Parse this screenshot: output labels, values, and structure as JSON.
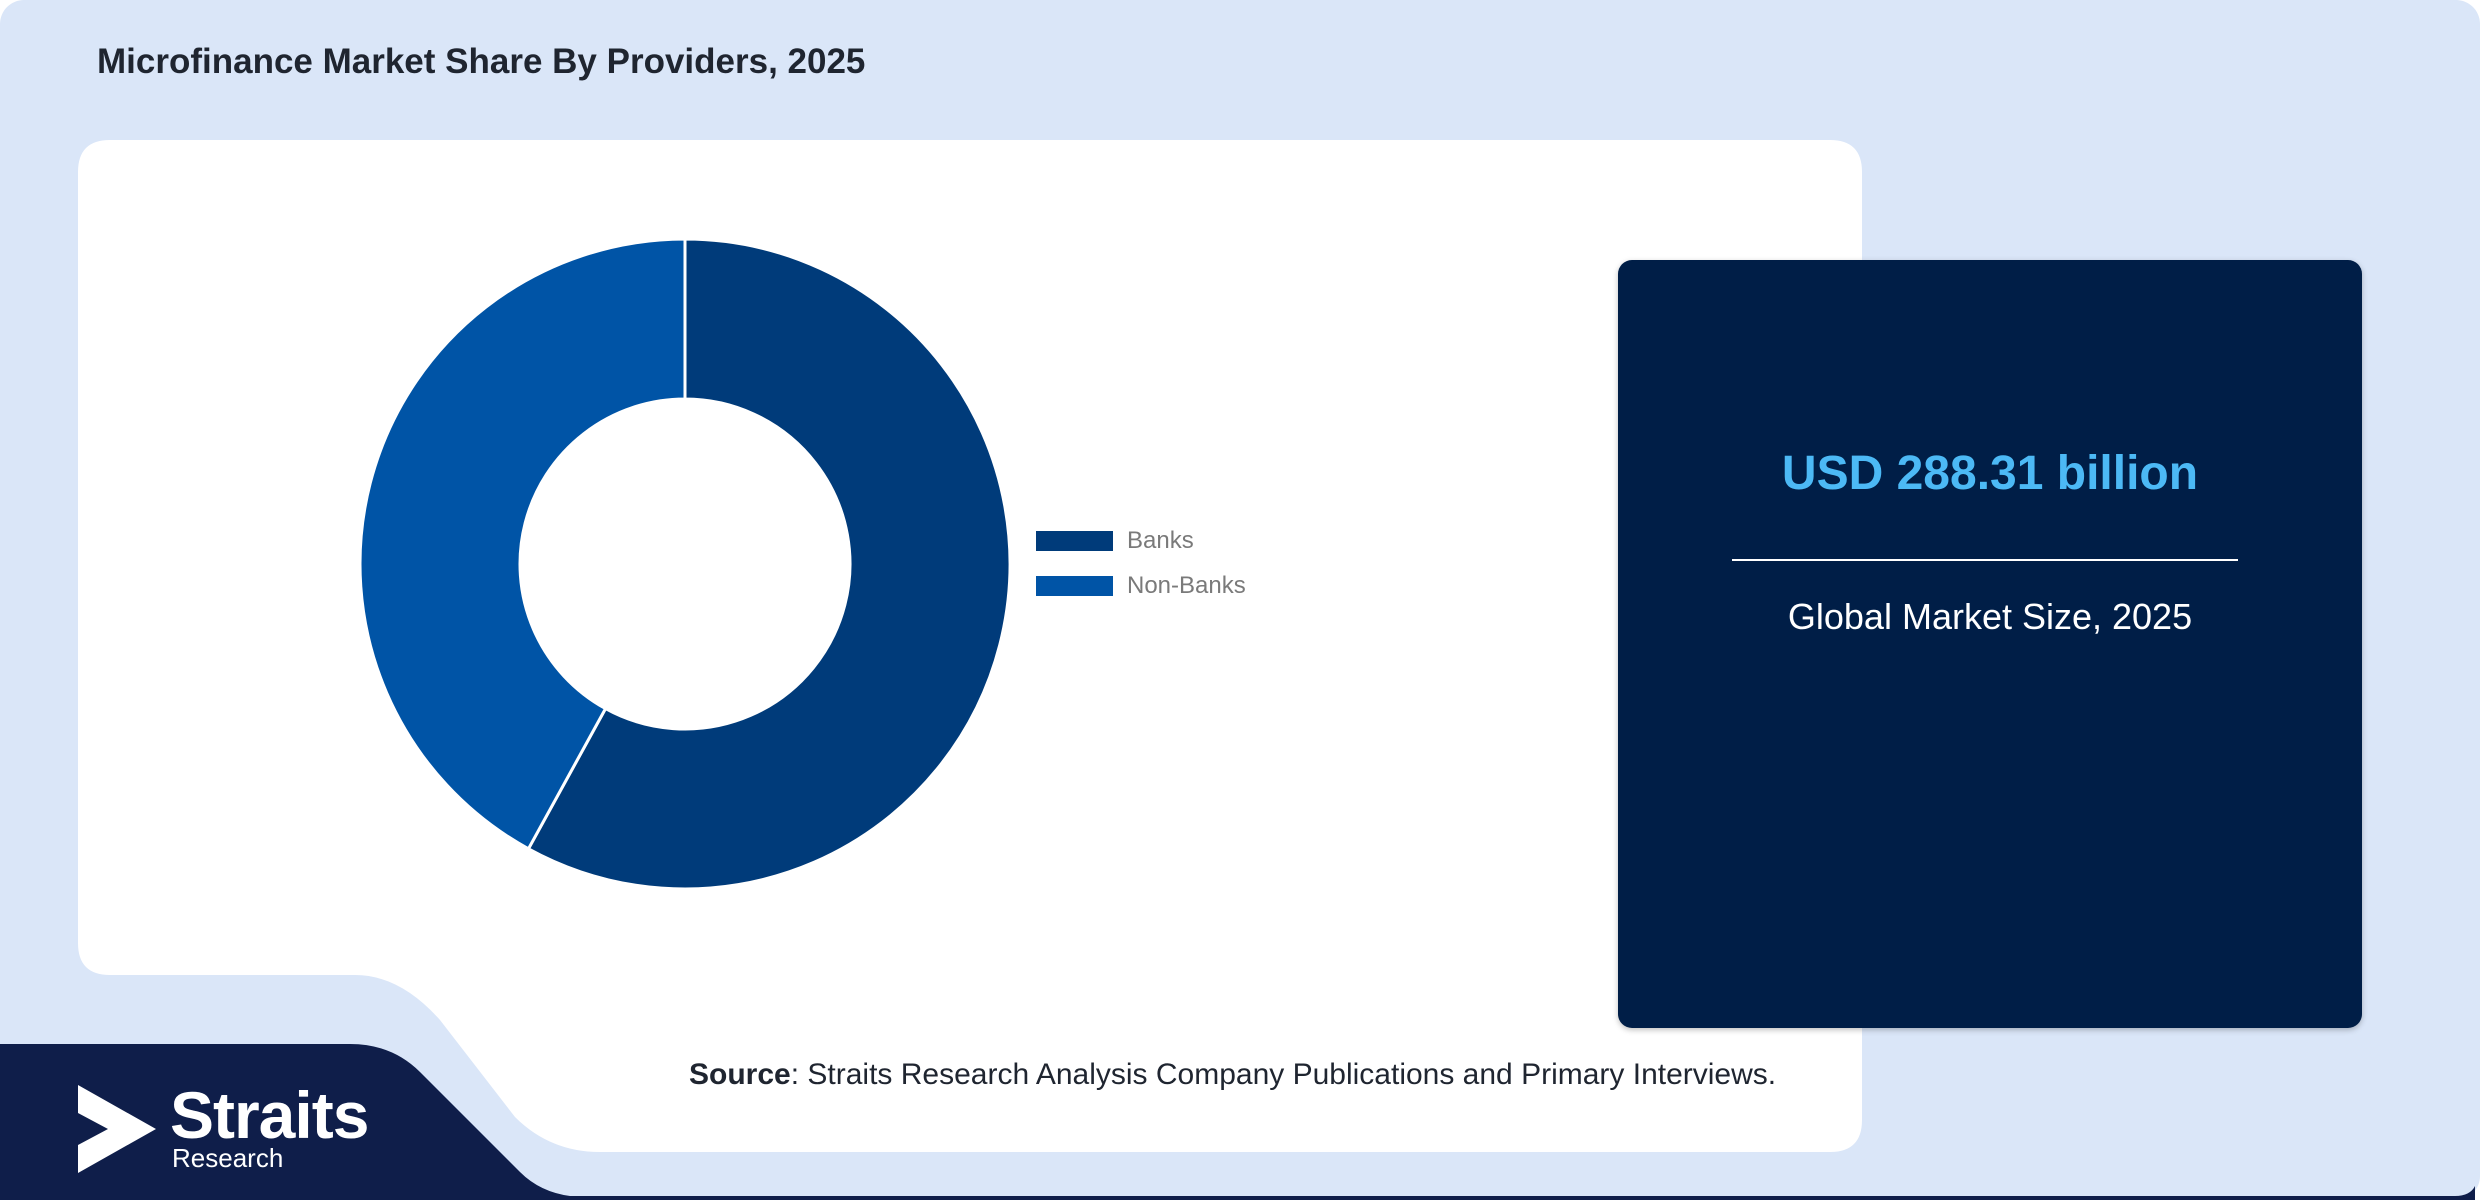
{
  "title": "Microfinance Market Share By Providers, 2025",
  "chart_data": {
    "type": "pie",
    "style": "donut",
    "categories": [
      "Banks",
      "Non-Banks"
    ],
    "values": [
      58,
      42
    ],
    "colors": [
      "#003b7a",
      "#0054a6"
    ],
    "legend_position": "right"
  },
  "card": {
    "value": "USD 288.31 billion",
    "label": "Global Market Size, 2025"
  },
  "source": {
    "prefix": "Source",
    "text": ": Straits Research Analysis Company Publications and Primary Interviews."
  },
  "logo": {
    "word": "Straits",
    "sub": "Research"
  },
  "colors": {
    "background": "#dae6f8",
    "panel": "#ffffff",
    "card": "#001e47",
    "accent": "#4cb9f5",
    "footer": "#0f1e4a"
  }
}
